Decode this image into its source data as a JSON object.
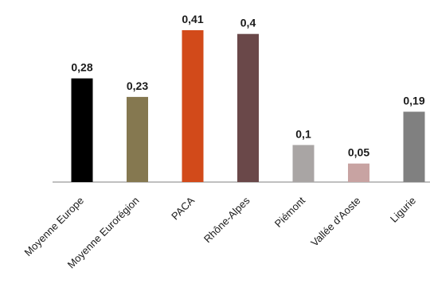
{
  "chart_data": {
    "type": "bar",
    "categories": [
      "Moyenne Europe",
      "Moyenne Eurorégion",
      "PACA",
      "Rhône-Alpes",
      "Piémont",
      "Vallée d'Aoste",
      "Ligurie"
    ],
    "values": [
      0.28,
      0.23,
      0.41,
      0.4,
      0.1,
      0.05,
      0.19
    ],
    "value_labels": [
      "0,28",
      "0,23",
      "0,41",
      "0,4",
      "0,1",
      "0,05",
      "0,19"
    ],
    "colors": [
      "#000000",
      "#857850",
      "#d24a1a",
      "#6a4849",
      "#a9a5a4",
      "#c8a3a2",
      "#808080"
    ],
    "ylim": [
      0,
      0.41
    ],
    "grid": false,
    "legend": "none",
    "title": "",
    "xlabel": "",
    "ylabel": ""
  }
}
